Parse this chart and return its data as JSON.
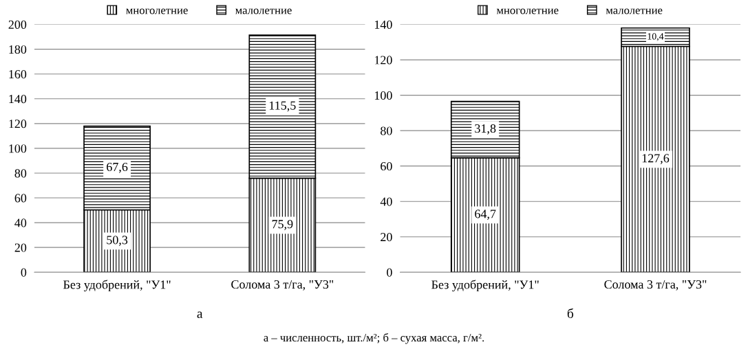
{
  "chart_data": [
    {
      "type": "bar",
      "stacked": true,
      "xlabel": "а",
      "categories": [
        "Без удобрений, \"У1\"",
        "Солома 3 т/га, \"У3\""
      ],
      "series": [
        {
          "name": "многолетние",
          "color": "#000000",
          "values": [
            50.3,
            75.9
          ],
          "value_labels": [
            "50,3",
            "75,9"
          ]
        },
        {
          "name": "малолетние",
          "color": "#000000",
          "values": [
            67.6,
            115.5
          ],
          "value_labels": [
            "67,6",
            "115,5"
          ]
        }
      ],
      "ylim": [
        0,
        200
      ],
      "yticks": [
        0,
        20,
        40,
        60,
        80,
        100,
        120,
        140,
        160,
        180,
        200
      ],
      "grid": "y",
      "legend": "top",
      "annotations": [
        "а – численность, шт./м²; б – сухая масса, г/м²."
      ]
    },
    {
      "type": "bar",
      "stacked": true,
      "xlabel": "б",
      "categories": [
        "Без удобрений, \"У1\"",
        "Солома 3 т/га, \"У3\""
      ],
      "series": [
        {
          "name": "многолетние",
          "color": "#000000",
          "values": [
            64.7,
            127.6
          ],
          "value_labels": [
            "64,7",
            "127,6"
          ]
        },
        {
          "name": "малолетние",
          "color": "#000000",
          "values": [
            31.8,
            10.4
          ],
          "value_labels": [
            "31,8",
            "10,4"
          ]
        }
      ],
      "ylim": [
        0,
        140
      ],
      "yticks": [
        0,
        20,
        40,
        60,
        80,
        100,
        120,
        140
      ],
      "grid": "y",
      "legend": "top"
    }
  ]
}
